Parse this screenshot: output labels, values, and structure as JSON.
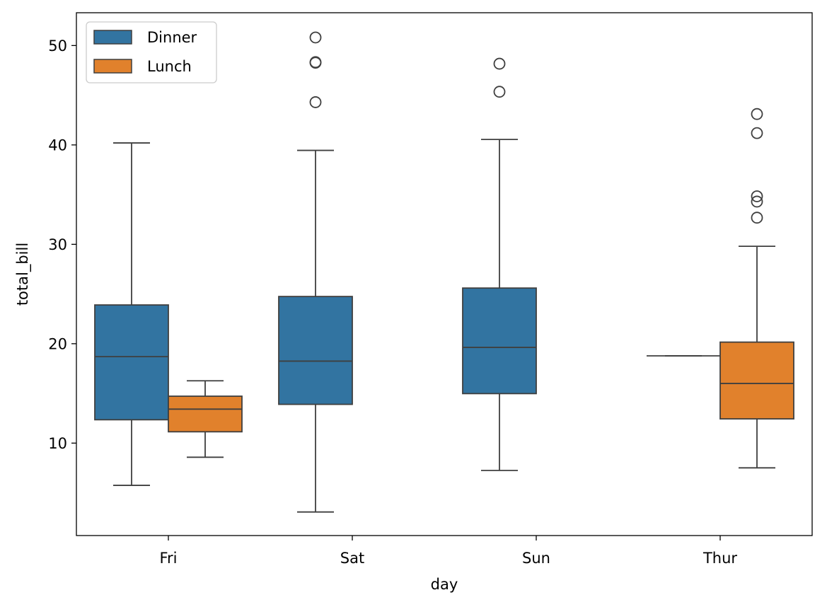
{
  "chart_data": {
    "type": "box",
    "title": "",
    "xlabel": "day",
    "ylabel": "total_bill",
    "categories": [
      "Fri",
      "Sat",
      "Sun",
      "Thur"
    ],
    "ylim": [
      0.7,
      53.3
    ],
    "yticks": [
      10,
      20,
      30,
      40,
      50
    ],
    "grid": false,
    "legend": {
      "placement": "top-left",
      "entries": [
        "Dinner",
        "Lunch"
      ]
    },
    "series": [
      {
        "name": "Dinner",
        "color": "#3274a1",
        "boxes": [
          {
            "category": "Fri",
            "whisker_low": 5.75,
            "q1": 12.35,
            "median": 18.7,
            "q3": 23.9,
            "whisker_high": 40.2,
            "outliers": []
          },
          {
            "category": "Sat",
            "whisker_low": 3.07,
            "q1": 13.9,
            "median": 18.25,
            "q3": 24.75,
            "whisker_high": 39.45,
            "outliers": [
              44.3,
              48.27,
              48.33,
              50.81
            ]
          },
          {
            "category": "Sun",
            "whisker_low": 7.25,
            "q1": 14.98,
            "median": 19.63,
            "q3": 25.6,
            "whisker_high": 40.55,
            "outliers": [
              45.35,
              48.17
            ]
          },
          {
            "category": "Thur",
            "whisker_low": 18.78,
            "q1": 18.78,
            "median": 18.78,
            "q3": 18.78,
            "whisker_high": 18.78,
            "outliers": []
          }
        ]
      },
      {
        "name": "Lunch",
        "color": "#e1812c",
        "boxes": [
          {
            "category": "Fri",
            "whisker_low": 8.58,
            "q1": 11.14,
            "median": 13.42,
            "q3": 14.72,
            "whisker_high": 16.27,
            "outliers": []
          },
          {
            "category": "Thur",
            "whisker_low": 7.51,
            "q1": 12.44,
            "median": 16.0,
            "q3": 20.16,
            "whisker_high": 29.8,
            "outliers": [
              32.68,
              34.3,
              34.83,
              41.19,
              43.11
            ]
          }
        ]
      }
    ]
  }
}
